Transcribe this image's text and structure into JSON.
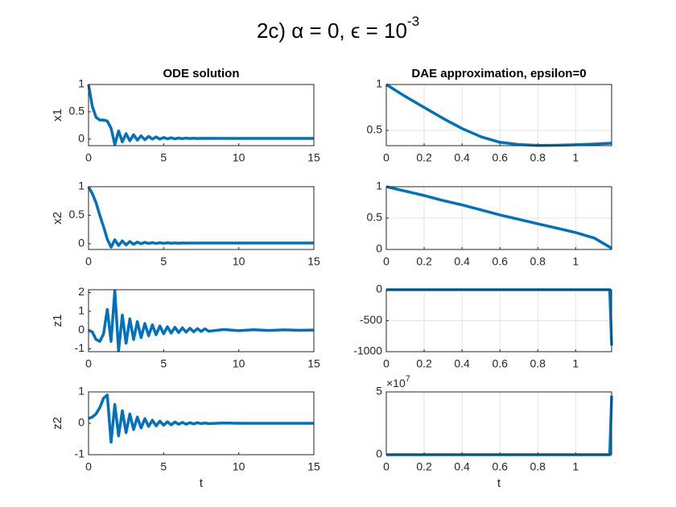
{
  "suptitle": {
    "base": "2c) α = 0, ϵ = 10",
    "exponent": "-3"
  },
  "chart_data": [
    {
      "type": "line",
      "title": "ODE solution",
      "ylabel": "x1",
      "grid": false,
      "color": "#0072bd",
      "x": [
        0,
        0.25,
        0.5,
        0.75,
        1,
        1.25,
        1.5,
        1.75,
        2,
        2.25,
        2.5,
        2.75,
        3,
        3.25,
        3.5,
        3.75,
        4,
        4.25,
        4.5,
        4.75,
        5,
        5.25,
        5.5,
        5.75,
        6,
        6.25,
        6.5,
        6.75,
        7,
        7.25,
        7.5,
        7.75,
        8,
        9,
        10,
        11,
        12,
        13,
        14,
        15
      ],
      "values": [
        1,
        0.6,
        0.4,
        0.35,
        0.35,
        0.33,
        0.2,
        -0.1,
        0.15,
        -0.05,
        0.1,
        -0.03,
        0.08,
        -0.02,
        0.06,
        -0.01,
        0.05,
        0,
        0.04,
        0,
        0.03,
        0.005,
        0.025,
        0.005,
        0.02,
        0.008,
        0.018,
        0.01,
        0.016,
        0.01,
        0.015,
        0.012,
        0.014,
        0.013,
        0.013,
        0.013,
        0.013,
        0.013,
        0.013,
        0.013
      ],
      "xlim": [
        0,
        15
      ],
      "xticks": [
        0,
        5,
        10,
        15
      ],
      "ylim": [
        -0.12,
        1
      ],
      "yticks": [
        0,
        0.5,
        1
      ]
    },
    {
      "type": "line",
      "title": "DAE approximation, epsilon=0",
      "grid": true,
      "color": "#0072bd",
      "x": [
        0,
        0.1,
        0.2,
        0.3,
        0.4,
        0.5,
        0.6,
        0.7,
        0.8,
        0.9,
        1,
        1.1,
        1.19
      ],
      "values": [
        1,
        0.87,
        0.75,
        0.63,
        0.52,
        0.43,
        0.37,
        0.345,
        0.335,
        0.337,
        0.343,
        0.35,
        0.36
      ],
      "xlim": [
        0,
        1.19
      ],
      "xticks": [
        0,
        0.2,
        0.4,
        0.6,
        0.8,
        1
      ],
      "ylim": [
        0.333,
        1
      ],
      "yticks": [
        0.5,
        1
      ]
    },
    {
      "type": "line",
      "ylabel": "x2",
      "grid": false,
      "color": "#0072bd",
      "x": [
        0,
        0.25,
        0.5,
        0.75,
        1,
        1.25,
        1.5,
        1.75,
        2,
        2.25,
        2.5,
        2.75,
        3,
        3.25,
        3.5,
        3.75,
        4,
        4.25,
        4.5,
        4.75,
        5,
        5.25,
        5.5,
        5.75,
        6,
        6.25,
        6.5,
        6.75,
        7,
        7.25,
        7.5,
        7.75,
        8,
        9,
        10,
        11,
        12,
        13,
        14,
        15
      ],
      "values": [
        1,
        0.88,
        0.72,
        0.5,
        0.3,
        0.08,
        -0.06,
        0.07,
        -0.03,
        0.05,
        -0.02,
        0.04,
        -0.01,
        0.03,
        0,
        0.025,
        0.005,
        0.02,
        0.005,
        0.018,
        0.008,
        0.016,
        0.009,
        0.015,
        0.01,
        0.014,
        0.011,
        0.013,
        0.012,
        0.013,
        0.012,
        0.012,
        0.012,
        0.012,
        0.012,
        0.012,
        0.012,
        0.012,
        0.012,
        0.012
      ],
      "xlim": [
        0,
        15
      ],
      "xticks": [
        0,
        5,
        10,
        15
      ],
      "ylim": [
        -0.1,
        1
      ],
      "yticks": [
        0,
        0.5,
        1
      ]
    },
    {
      "type": "line",
      "grid": true,
      "color": "#0072bd",
      "x": [
        0,
        0.1,
        0.2,
        0.3,
        0.4,
        0.5,
        0.6,
        0.7,
        0.8,
        0.9,
        1,
        1.1,
        1.19
      ],
      "values": [
        1,
        0.93,
        0.86,
        0.78,
        0.71,
        0.63,
        0.55,
        0.48,
        0.41,
        0.34,
        0.27,
        0.18,
        0.02
      ],
      "xlim": [
        0,
        1.19
      ],
      "xticks": [
        0,
        0.2,
        0.4,
        0.6,
        0.8,
        1
      ],
      "ylim": [
        0,
        1
      ],
      "yticks": [
        0,
        0.5,
        1
      ]
    },
    {
      "type": "line",
      "ylabel": "z1",
      "grid": false,
      "color": "#0072bd",
      "x": [
        0,
        0.25,
        0.5,
        0.75,
        1,
        1.25,
        1.5,
        1.75,
        2,
        2.25,
        2.5,
        2.75,
        3,
        3.25,
        3.5,
        3.75,
        4,
        4.25,
        4.5,
        4.75,
        5,
        5.25,
        5.5,
        5.75,
        6,
        6.25,
        6.5,
        6.75,
        7,
        7.25,
        7.5,
        7.75,
        8,
        9,
        10,
        11,
        12,
        13,
        14,
        15
      ],
      "values": [
        0,
        -0.1,
        -0.5,
        -0.6,
        -0.2,
        1.1,
        -0.6,
        2.1,
        -1.1,
        0.8,
        -0.7,
        0.6,
        -0.5,
        0.45,
        -0.4,
        0.35,
        -0.3,
        0.28,
        -0.25,
        0.22,
        -0.2,
        0.18,
        -0.16,
        0.15,
        -0.13,
        0.12,
        -0.11,
        0.1,
        -0.09,
        0.08,
        -0.07,
        0.07,
        -0.06,
        0.03,
        -0.03,
        0.02,
        -0.02,
        0.01,
        -0.01,
        0
      ],
      "xlim": [
        0,
        15
      ],
      "xticks": [
        0,
        5,
        10,
        15
      ],
      "ylim": [
        -1.15,
        2.15
      ],
      "yticks": [
        -1,
        0,
        1,
        2
      ]
    },
    {
      "type": "line",
      "grid": true,
      "color": "#0072bd",
      "x": [
        0,
        1.18,
        1.19
      ],
      "values": [
        0,
        0,
        -900
      ],
      "xlim": [
        0,
        1.19
      ],
      "xticks": [
        0,
        0.2,
        0.4,
        0.6,
        0.8,
        1
      ],
      "ylim": [
        -1000,
        0
      ],
      "yticks": [
        -1000,
        -500,
        0
      ]
    },
    {
      "type": "line",
      "ylabel": "z2",
      "xlabel": "t",
      "grid": false,
      "color": "#0072bd",
      "x": [
        0,
        0.25,
        0.5,
        0.75,
        1,
        1.25,
        1.5,
        1.75,
        2,
        2.25,
        2.5,
        2.75,
        3,
        3.25,
        3.5,
        3.75,
        4,
        4.25,
        4.5,
        4.75,
        5,
        5.25,
        5.5,
        5.75,
        6,
        6.25,
        6.5,
        6.75,
        7,
        7.25,
        7.5,
        7.75,
        8,
        9,
        10,
        11,
        12,
        13,
        14,
        15
      ],
      "values": [
        0.15,
        0.2,
        0.3,
        0.5,
        0.8,
        0.9,
        -0.6,
        0.6,
        -0.4,
        0.4,
        -0.3,
        0.3,
        -0.2,
        0.2,
        -0.15,
        0.15,
        -0.1,
        0.1,
        -0.08,
        0.07,
        -0.06,
        0.05,
        -0.05,
        0.04,
        -0.03,
        0.03,
        -0.03,
        0.02,
        -0.02,
        0.02,
        -0.01,
        0.01,
        -0.01,
        0.01,
        0,
        0,
        0,
        0,
        0,
        0
      ],
      "xlim": [
        0,
        15
      ],
      "xticks": [
        0,
        5,
        10,
        15
      ],
      "ylim": [
        -1,
        1
      ],
      "yticks": [
        -1,
        0,
        1
      ]
    },
    {
      "type": "line",
      "xlabel": "t",
      "grid": true,
      "color": "#0072bd",
      "x": [
        0,
        1.18,
        1.19
      ],
      "values": [
        0,
        0,
        47000000
      ],
      "xlim": [
        0,
        1.19
      ],
      "xticks": [
        0,
        0.2,
        0.4,
        0.6,
        0.8,
        1
      ],
      "ylim": [
        0,
        50000000
      ],
      "yticks": [
        0,
        {
          "value": 50000000,
          "label": "5"
        }
      ],
      "y_multiplier": {
        "base": "×10",
        "exponent": "7"
      }
    }
  ]
}
